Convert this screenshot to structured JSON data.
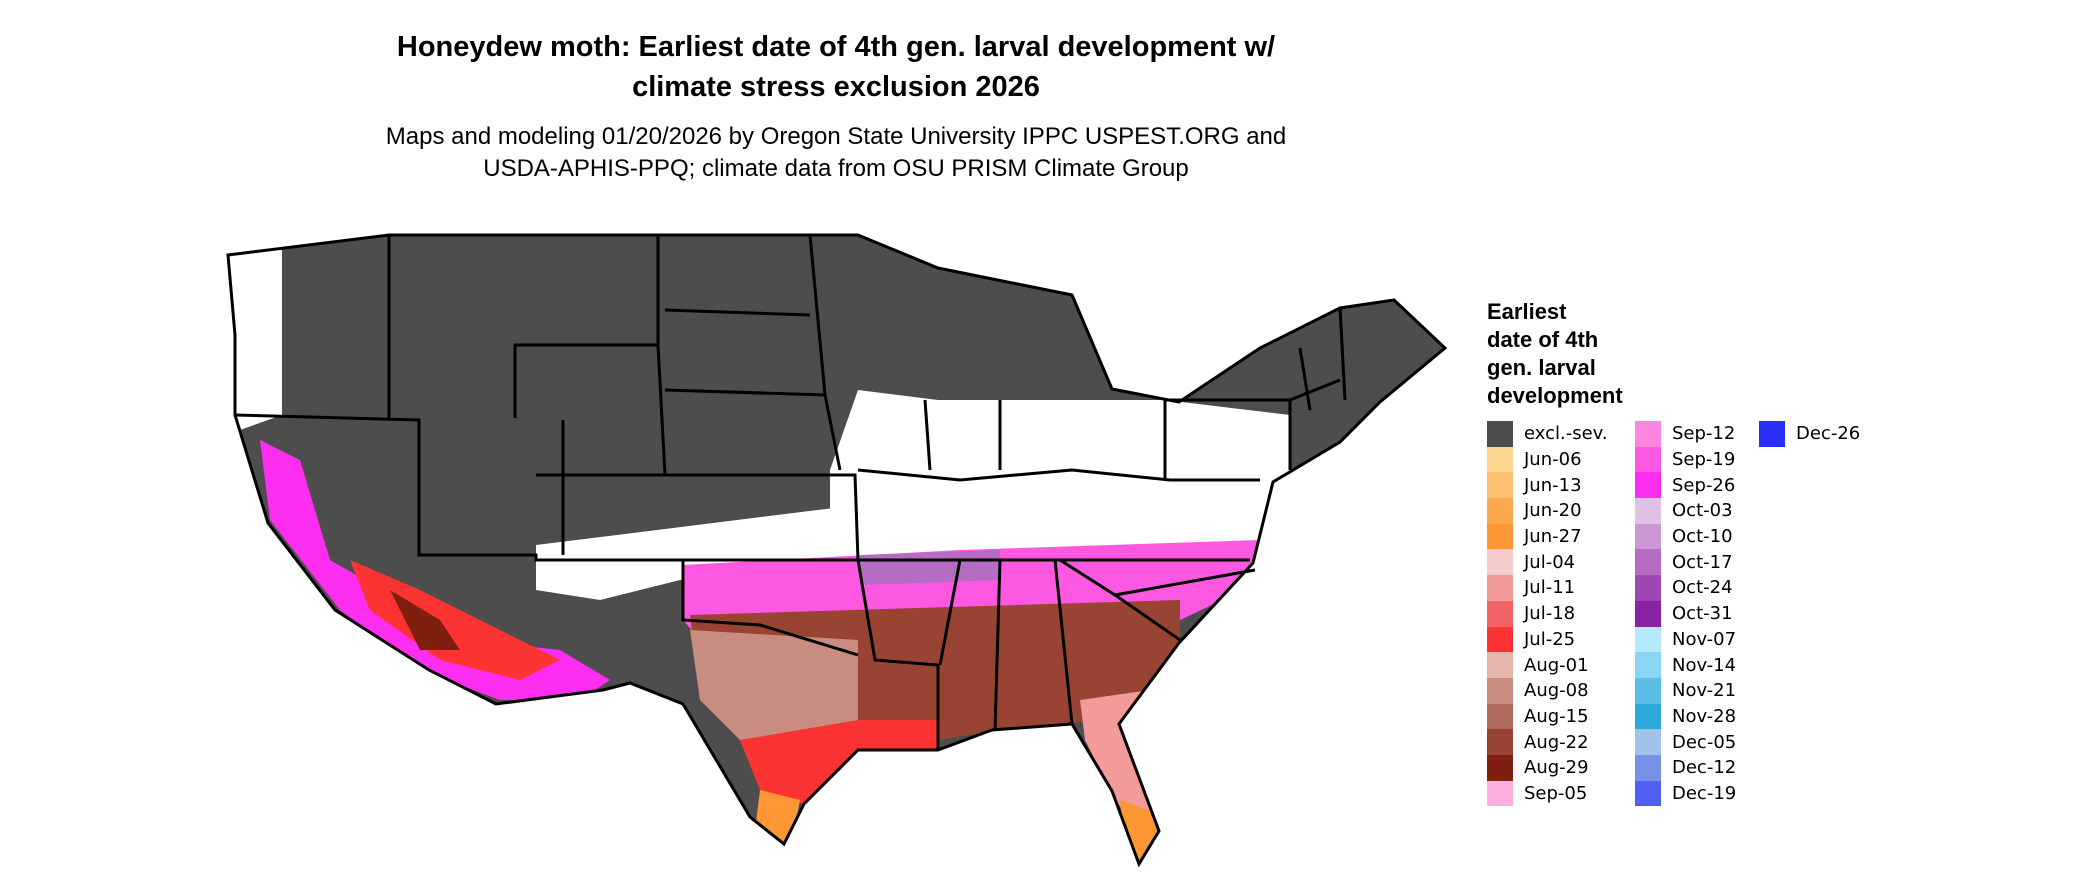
{
  "title": {
    "line1": "Honeydew moth: Earliest date of 4th gen. larval development w/",
    "line2": "climate stress exclusion 2026"
  },
  "subtitle": {
    "line1": "Maps and modeling 01/20/2026 by Oregon State University IPPC USPEST.ORG and",
    "line2": "USDA-APHIS-PPQ; climate data from OSU PRISM Climate Group"
  },
  "legend": {
    "title_lines": [
      "Earliest",
      "date of 4th",
      "gen. larval",
      "development"
    ],
    "columns": [
      [
        {
          "label": "excl.-sev.",
          "color": "#4d4d4d"
        },
        {
          "label": "Jun-06",
          "color": "#fdd68f"
        },
        {
          "label": "Jun-13",
          "color": "#fdc070"
        },
        {
          "label": "Jun-20",
          "color": "#fca84f"
        },
        {
          "label": "Jun-27",
          "color": "#fc9733"
        },
        {
          "label": "Jul-04",
          "color": "#f5cccc"
        },
        {
          "label": "Jul-11",
          "color": "#f39a9a"
        },
        {
          "label": "Jul-18",
          "color": "#f46464"
        },
        {
          "label": "Jul-25",
          "color": "#fc3333"
        },
        {
          "label": "Aug-01",
          "color": "#e5b5ae"
        },
        {
          "label": "Aug-08",
          "color": "#c98c80"
        },
        {
          "label": "Aug-15",
          "color": "#b06a5c"
        },
        {
          "label": "Aug-22",
          "color": "#994433"
        },
        {
          "label": "Aug-29",
          "color": "#7f1f0f"
        },
        {
          "label": "Sep-05",
          "color": "#fdb0de"
        }
      ],
      [
        {
          "label": "Sep-12",
          "color": "#fd85df"
        },
        {
          "label": "Sep-19",
          "color": "#fd58e2"
        },
        {
          "label": "Sep-26",
          "color": "#fd2ef0"
        },
        {
          "label": "Oct-03",
          "color": "#e0c0e6"
        },
        {
          "label": "Oct-10",
          "color": "#cb97d3"
        },
        {
          "label": "Oct-17",
          "color": "#b46dc2"
        },
        {
          "label": "Oct-24",
          "color": "#9f48b4"
        },
        {
          "label": "Oct-31",
          "color": "#8823a6"
        },
        {
          "label": "Nov-07",
          "color": "#b3ebfd"
        },
        {
          "label": "Nov-14",
          "color": "#8ad6f2"
        },
        {
          "label": "Nov-21",
          "color": "#5bbde6"
        },
        {
          "label": "Nov-28",
          "color": "#2ea7db"
        },
        {
          "label": "Dec-05",
          "color": "#a0c2e6"
        },
        {
          "label": "Dec-12",
          "color": "#7891e8"
        },
        {
          "label": "Dec-19",
          "color": "#5060f3"
        }
      ],
      [
        {
          "label": "Dec-26",
          "color": "#2a2efd"
        }
      ]
    ]
  }
}
